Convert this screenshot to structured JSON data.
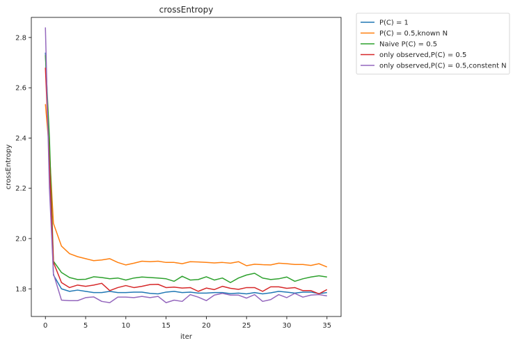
{
  "chart_data": {
    "type": "line",
    "title": "crossEntropy",
    "xlabel": "iter",
    "ylabel": "crossEntropy",
    "xlim": [
      -1.75,
      36.75
    ],
    "ylim": [
      1.69,
      2.88
    ],
    "xticks": [
      0,
      5,
      10,
      15,
      20,
      25,
      30,
      35
    ],
    "yticks": [
      1.8,
      2.0,
      2.2,
      2.4,
      2.6,
      2.8
    ],
    "ytick_labels": [
      "1.8",
      "2.0",
      "2.2",
      "2.4",
      "2.6",
      "2.8"
    ],
    "grid": false,
    "legend_placement": "outside-top-right",
    "x": [
      0,
      0.5,
      1,
      2,
      3,
      4,
      5,
      6,
      7,
      8,
      9,
      10,
      11,
      12,
      13,
      14,
      15,
      16,
      17,
      18,
      19,
      20,
      21,
      22,
      23,
      24,
      25,
      26,
      27,
      28,
      29,
      30,
      31,
      32,
      33,
      34,
      35
    ],
    "series": [
      {
        "name": "P(C) = 1",
        "color": "#1f77b4",
        "values": [
          2.74,
          2.3,
          1.855,
          1.8,
          1.79,
          1.795,
          1.79,
          1.785,
          1.785,
          1.79,
          1.785,
          1.785,
          1.787,
          1.787,
          1.782,
          1.78,
          1.787,
          1.79,
          1.785,
          1.787,
          1.783,
          1.783,
          1.785,
          1.785,
          1.781,
          1.783,
          1.78,
          1.785,
          1.78,
          1.784,
          1.79,
          1.787,
          1.783,
          1.787,
          1.787,
          1.781,
          1.785
        ]
      },
      {
        "name": "P(C) = 0.5,known N",
        "color": "#ff7f0e",
        "values": [
          2.535,
          2.35,
          2.06,
          1.97,
          1.94,
          1.928,
          1.92,
          1.912,
          1.915,
          1.92,
          1.905,
          1.895,
          1.902,
          1.91,
          1.908,
          1.91,
          1.905,
          1.905,
          1.9,
          1.908,
          1.907,
          1.905,
          1.903,
          1.905,
          1.902,
          1.908,
          1.892,
          1.898,
          1.896,
          1.895,
          1.902,
          1.9,
          1.897,
          1.897,
          1.893,
          1.9,
          1.887
        ]
      },
      {
        "name": "Naive P(C) = 0.5",
        "color": "#2ca02c",
        "values": [
          2.73,
          2.4,
          1.91,
          1.865,
          1.845,
          1.837,
          1.838,
          1.848,
          1.845,
          1.84,
          1.843,
          1.835,
          1.843,
          1.847,
          1.845,
          1.843,
          1.84,
          1.83,
          1.85,
          1.835,
          1.837,
          1.848,
          1.835,
          1.843,
          1.825,
          1.843,
          1.855,
          1.862,
          1.843,
          1.837,
          1.84,
          1.847,
          1.83,
          1.84,
          1.847,
          1.852,
          1.847
        ]
      },
      {
        "name": "only observed,P(C) = 0.5",
        "color": "#d62728",
        "values": [
          2.68,
          2.3,
          1.905,
          1.825,
          1.805,
          1.815,
          1.81,
          1.815,
          1.822,
          1.793,
          1.805,
          1.813,
          1.805,
          1.81,
          1.817,
          1.818,
          1.805,
          1.807,
          1.803,
          1.805,
          1.79,
          1.803,
          1.797,
          1.81,
          1.802,
          1.798,
          1.805,
          1.805,
          1.79,
          1.808,
          1.808,
          1.802,
          1.805,
          1.793,
          1.793,
          1.78,
          1.797
        ]
      },
      {
        "name": "only observed,P(C) = 0.5,constent N",
        "color": "#9467bd",
        "values": [
          2.84,
          2.2,
          1.86,
          1.755,
          1.753,
          1.753,
          1.765,
          1.768,
          1.75,
          1.745,
          1.767,
          1.767,
          1.765,
          1.77,
          1.765,
          1.77,
          1.745,
          1.755,
          1.75,
          1.777,
          1.767,
          1.753,
          1.775,
          1.782,
          1.775,
          1.775,
          1.763,
          1.777,
          1.75,
          1.757,
          1.777,
          1.765,
          1.782,
          1.767,
          1.775,
          1.777,
          1.772
        ]
      }
    ]
  }
}
